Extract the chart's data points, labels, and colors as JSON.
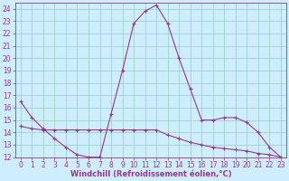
{
  "xlabel": "Windchill (Refroidissement éolien,°C)",
  "xlim": [
    -0.5,
    23.5
  ],
  "ylim": [
    12,
    24.5
  ],
  "yticks": [
    12,
    13,
    14,
    15,
    16,
    17,
    18,
    19,
    20,
    21,
    22,
    23,
    24
  ],
  "xticks": [
    0,
    1,
    2,
    3,
    4,
    5,
    6,
    7,
    8,
    9,
    10,
    11,
    12,
    13,
    14,
    15,
    16,
    17,
    18,
    19,
    20,
    21,
    22,
    23
  ],
  "bg_color": "#cceeff",
  "line_color": "#993399",
  "grid_color": "#99ccbb",
  "series1_x": [
    0,
    1,
    2,
    3,
    4,
    5,
    6,
    7,
    8,
    9,
    10,
    11,
    12,
    13,
    14,
    15,
    16,
    17,
    18,
    19,
    20,
    21,
    22,
    23
  ],
  "series1_y": [
    16.5,
    15.2,
    14.3,
    13.5,
    12.8,
    12.2,
    12.0,
    12.0,
    15.5,
    19.0,
    22.8,
    23.8,
    24.3,
    22.8,
    20.0,
    17.5,
    15.0,
    15.0,
    15.2,
    15.2,
    14.8,
    14.0,
    12.8,
    12.0
  ],
  "series2_x": [
    0,
    1,
    2,
    3,
    4,
    5,
    6,
    7,
    8,
    9,
    10,
    11,
    12,
    13,
    14,
    15,
    16,
    17,
    18,
    19,
    20,
    21,
    22,
    23
  ],
  "series2_y": [
    14.5,
    14.3,
    14.2,
    14.2,
    14.2,
    14.2,
    14.2,
    14.2,
    14.2,
    14.2,
    14.2,
    14.2,
    14.2,
    13.8,
    13.5,
    13.2,
    13.0,
    12.8,
    12.7,
    12.6,
    12.5,
    12.3,
    12.2,
    12.0
  ],
  "xlabel_fontsize": 6,
  "tick_fontsize": 5.5
}
